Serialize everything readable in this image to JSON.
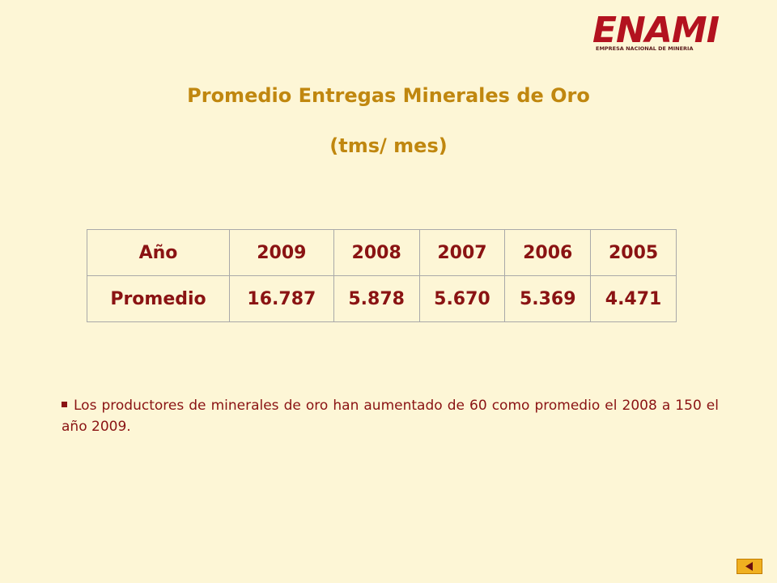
{
  "logo": {
    "name": "ENAMI",
    "subtitle": "EMPRESA NACIONAL DE MINERIA"
  },
  "header": {
    "title": "Promedio Entregas Minerales de Oro",
    "subtitle": "(tms/ mes)"
  },
  "table": {
    "rows": [
      [
        "Año",
        "2009",
        "2008",
        "2007",
        "2006",
        "2005"
      ],
      [
        "Promedio",
        "16.787",
        "5.878",
        "5.670",
        "5.369",
        "4.471"
      ]
    ]
  },
  "bullets": [
    "Los productores de minerales de oro han aumentado de 60 como promedio el 2008 a 150 el año 2009."
  ]
}
